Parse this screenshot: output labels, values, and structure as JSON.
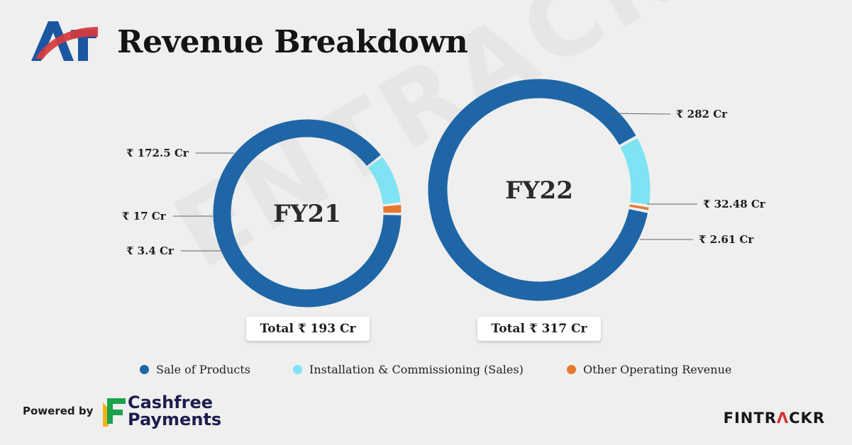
{
  "header": {
    "title": "Revenue Breakdown"
  },
  "watermark": "ENTRACKR",
  "colors": {
    "sale_of_products": "#1f66a6",
    "installation": "#7ee3f2",
    "other": "#e6782e",
    "brand_blue": "#1b56a0",
    "brand_red": "#d63b3b"
  },
  "chart_data": [
    {
      "type": "pie",
      "style": "donut",
      "center_label": "FY21",
      "categories": [
        "Sale of Products",
        "Installation & Commissioning (Sales)",
        "Other Operating Revenue"
      ],
      "values": [
        172.5,
        17,
        3.4
      ],
      "value_labels": [
        "₹ 172.5 Cr",
        "₹ 17 Cr",
        "₹ 3.4 Cr"
      ],
      "total_label": "Total ₹ 193 Cr"
    },
    {
      "type": "pie",
      "style": "donut",
      "center_label": "FY22",
      "categories": [
        "Sale of Products",
        "Installation & Commissioning (Sales)",
        "Other Operating Revenue"
      ],
      "values": [
        282,
        32.48,
        2.61
      ],
      "value_labels": [
        "₹ 282 Cr",
        "₹ 32.48 Cr",
        "₹ 2.61 Cr"
      ],
      "total_label": "Total ₹ 317 Cr"
    }
  ],
  "legend": [
    {
      "label": "Sale of Products",
      "color": "#1f66a6"
    },
    {
      "label": "Installation & Commissioning (Sales)",
      "color": "#7ee3f2"
    },
    {
      "label": "Other Operating Revenue",
      "color": "#e6782e"
    }
  ],
  "footer": {
    "powered_by": "Powered by",
    "cashfree_line1": "Cashfree",
    "cashfree_line2": "Payments",
    "fintrackr_a": "FINTR",
    "fintrackr_b": "Λ",
    "fintrackr_c": "CKR"
  }
}
